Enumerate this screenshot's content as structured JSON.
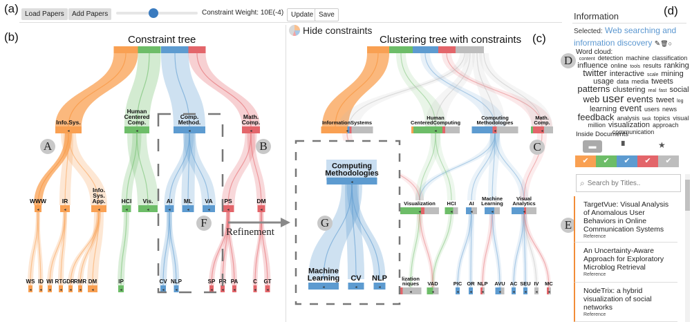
{
  "figure_labels": {
    "a": "(a)",
    "b": "(b)",
    "c": "(c)",
    "d": "(d)"
  },
  "toolbar": {
    "load": "Load Papers",
    "add": "Add Papers",
    "weight_label": "Constraint Weight: 10E(-4)",
    "slider_value": 0.46,
    "update": "Update",
    "save": "Save"
  },
  "colors": {
    "orange": "#f9a052",
    "green": "#6dbd68",
    "blue": "#5d9bd0",
    "red": "#e3656a",
    "gray": "#bdbdbd"
  },
  "constraint_tree": {
    "title": "Constraint tree",
    "nodes": {
      "infosys": "Info.Sys.",
      "hcc": "Human\nCentered\nComp.",
      "cm": "Comp.\nMethod.",
      "mc": "Math.\nComp.",
      "www": "WWW",
      "ir": "IR",
      "isa": "Info.\nSys.\nApp.",
      "hci": "HCI",
      "vis": "Vis.",
      "ai": "AI",
      "ml": "ML",
      "va": "VA",
      "ps": "PS",
      "dm": "DM",
      "ws": "WS",
      "id": "ID",
      "wi": "WI",
      "rtg": "RTG",
      "drr": "DR",
      "rmr": "RMR",
      "dm2": "DM",
      "ip": "IP",
      "cv": "CV",
      "nlp": "NLP",
      "sp": "SP",
      "pr": "PR",
      "pa": "PA",
      "c": "C",
      "gt": "GT"
    }
  },
  "clustering_tree": {
    "title": "Clustering tree with constraints",
    "hide_constraints": "Hide constraints",
    "nodes": {
      "is": "InformationSystems",
      "hcc": "Human\nCenteredComputing",
      "cm": "Computing\nMethodologies",
      "mc": "Math.\nComp.",
      "vis": "Visualization",
      "hci": "HCI",
      "ai": "AI",
      "ml": "Machine\nLearning",
      "va": "Visual\nAnalytics",
      "vt": "lization\nniques",
      "vad": "VAD",
      "pic": "PIC",
      "or": "OR",
      "nlp": "NLP",
      "avu": "AVU",
      "ac": "AC",
      "seu": "SEU",
      "iv": "IV",
      "mc2": "MC"
    },
    "callout": {
      "cm": "Computing\nMethodologies",
      "ml": "Machine\nLearning",
      "cv": "CV",
      "nlp": "NLP"
    }
  },
  "refinement_label": "Refinement",
  "markers": {
    "A": "A",
    "B": "B",
    "C": "C",
    "D": "D",
    "E": "E",
    "F": "F",
    "G": "G"
  },
  "info": {
    "title": "Information",
    "selected_label": "Selected:",
    "selected_value": "Web searching and information discovery",
    "word_cloud_label": "Word cloud:",
    "words": [
      {
        "t": "content",
        "w": 1
      },
      {
        "t": "detection",
        "w": 2
      },
      {
        "t": "machine",
        "w": 2
      },
      {
        "t": "classification",
        "w": 2
      },
      {
        "t": "influence",
        "w": 3
      },
      {
        "t": "online",
        "w": 2
      },
      {
        "t": "tools",
        "w": 1
      },
      {
        "t": "results",
        "w": 2
      },
      {
        "t": "ranking",
        "w": 3
      },
      {
        "t": "twitter",
        "w": 4
      },
      {
        "t": "interactive",
        "w": 3
      },
      {
        "t": "scale",
        "w": 1
      },
      {
        "t": "mining",
        "w": 3
      },
      {
        "t": "usage",
        "w": 3
      },
      {
        "t": "data",
        "w": 2
      },
      {
        "t": "media",
        "w": 2
      },
      {
        "t": "tweets",
        "w": 3
      },
      {
        "t": "patterns",
        "w": 4
      },
      {
        "t": "clustering",
        "w": 3
      },
      {
        "t": "real",
        "w": 1
      },
      {
        "t": "fast",
        "w": 1
      },
      {
        "t": "social",
        "w": 3
      },
      {
        "t": "web",
        "w": 4
      },
      {
        "t": "user",
        "w": 5
      },
      {
        "t": "events",
        "w": 4
      },
      {
        "t": "tweet",
        "w": 3
      },
      {
        "t": "log",
        "w": 1
      },
      {
        "t": "learning",
        "w": 3
      },
      {
        "t": "event",
        "w": 4
      },
      {
        "t": "users",
        "w": 2
      },
      {
        "t": "news",
        "w": 2
      },
      {
        "t": "feedback",
        "w": 4
      },
      {
        "t": "analysis",
        "w": 2
      },
      {
        "t": "task",
        "w": 1
      },
      {
        "t": "topics",
        "w": 2
      },
      {
        "t": "visual",
        "w": 2
      },
      {
        "t": "million",
        "w": 2
      },
      {
        "t": "visualization",
        "w": 3
      },
      {
        "t": "approach",
        "w": 2
      },
      {
        "t": "communication",
        "w": 2
      }
    ],
    "inside_docs_label": "Inside Documents",
    "check": "✔",
    "search_placeholder": "Search by Titles..",
    "docs": [
      {
        "title": "TargetVue: Visual Analysis of Anomalous User Behaviors in Online Communication Systems",
        "type": "Reference"
      },
      {
        "title": "An Uncertainty-Aware Approach for Exploratory Microblog Retrieval",
        "type": "Reference"
      },
      {
        "title": "NodeTrix: a hybrid visualization of social networks",
        "type": "Reference"
      }
    ]
  }
}
